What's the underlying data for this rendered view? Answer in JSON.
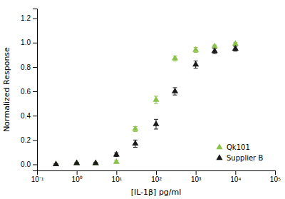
{
  "chart_data": {
    "type": "scatter",
    "xlabel": "[IL-1β] pg/ml",
    "ylabel": "Normalized Response",
    "log": "x",
    "grid": false,
    "legend": "lower right",
    "marker": "triangle",
    "xlim": [
      0.1,
      100000
    ],
    "xticks": [
      {
        "value": 0.1,
        "label": "10⁻¹"
      },
      {
        "value": 1,
        "label": "10⁰"
      },
      {
        "value": 10,
        "label": "10¹"
      },
      {
        "value": 100,
        "label": "10²"
      },
      {
        "value": 1000,
        "label": "10³"
      },
      {
        "value": 10000,
        "label": "10⁴"
      },
      {
        "value": 100000,
        "label": "10⁵"
      }
    ],
    "ylim": [
      -0.05,
      1.28
    ],
    "yticks": [
      {
        "value": 0.0,
        "label": "0.0"
      },
      0.2,
      0.4,
      0.6,
      0.8,
      {
        "value": 1.0,
        "label": "1.0"
      },
      1.2
    ],
    "series": [
      {
        "name": "Qk101",
        "color": "#8BC34A",
        "x": [
          0.3,
          1.0,
          3.0,
          10.0,
          30.0,
          100.0,
          300.0,
          1000.0,
          3000.0,
          10000.0
        ],
        "values": [
          0.0,
          0.01,
          0.01,
          0.02,
          0.29,
          0.53,
          0.87,
          0.94,
          0.97,
          0.99
        ],
        "yerr": [
          0.005,
          0.005,
          0.005,
          0.01,
          0.02,
          0.03,
          0.02,
          0.02,
          0.01,
          0.01
        ]
      },
      {
        "name": "Supplier B",
        "color": "#1a1a1a",
        "x": [
          0.3,
          1.0,
          3.0,
          10.0,
          30.0,
          100.0,
          300.0,
          1000.0,
          3000.0,
          10000.0
        ],
        "values": [
          0.0,
          0.01,
          0.01,
          0.08,
          0.17,
          0.33,
          0.6,
          0.82,
          0.93,
          0.95
        ],
        "yerr": [
          0.005,
          0.005,
          0.005,
          0.015,
          0.03,
          0.04,
          0.03,
          0.03,
          0.02,
          0.02
        ]
      }
    ]
  }
}
